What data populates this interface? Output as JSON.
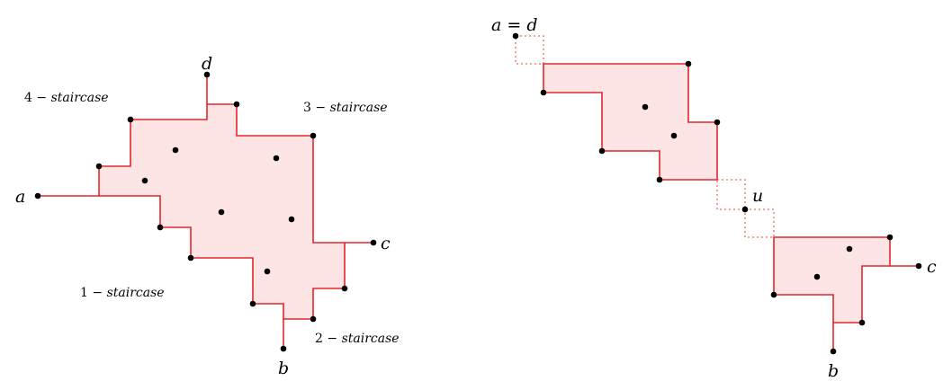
{
  "left_figure": {
    "vertex_labels": {
      "a": "a",
      "b": "b",
      "c": "c",
      "d": "d"
    },
    "staircases": {
      "s1": {
        "num": "1",
        "op": "−",
        "word": "staircase"
      },
      "s2": {
        "num": "2",
        "op": "−",
        "word": "staircase"
      },
      "s3": {
        "num": "3",
        "op": "−",
        "word": "staircase"
      },
      "s4": {
        "num": "4",
        "op": "−",
        "word": "staircase"
      }
    }
  },
  "right_figure": {
    "vertex_labels": {
      "a_eq_d": "a = d",
      "u": "u",
      "b": "b",
      "c": "c"
    }
  },
  "colors": {
    "edge": "#e3262b",
    "fill": "#fde5e5",
    "dotted": "#ef6b5f",
    "point": "#000000"
  }
}
